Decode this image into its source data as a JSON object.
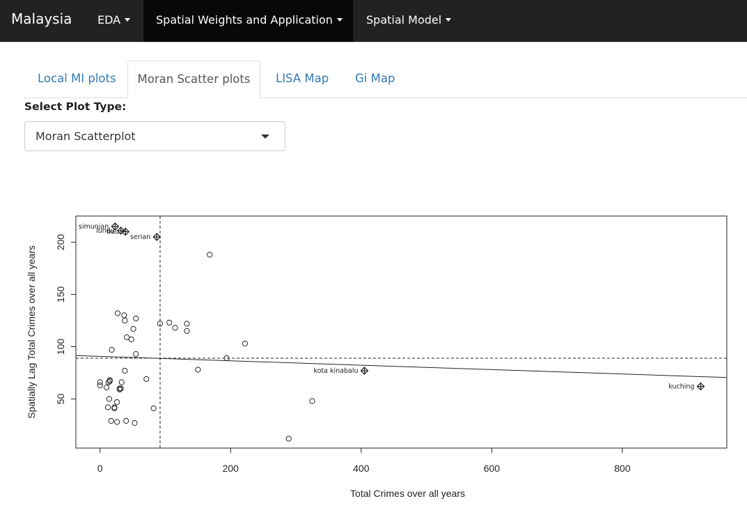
{
  "navbar": {
    "brand": "Malaysia",
    "items": [
      {
        "label": "EDA",
        "active": false
      },
      {
        "label": "Spatial Weights and Application",
        "active": true
      },
      {
        "label": "Spatial Model",
        "active": false
      }
    ]
  },
  "tabs": [
    {
      "label": "Local MI plots",
      "active": false
    },
    {
      "label": "Moran Scatter plots",
      "active": true
    },
    {
      "label": "LISA Map",
      "active": false
    },
    {
      "label": "Gi Map",
      "active": false
    }
  ],
  "select": {
    "label": "Select Plot Type:",
    "value": "Moran Scatterplot"
  },
  "chart_data": {
    "type": "scatter",
    "title": "",
    "xlabel": "Total Crimes over all years",
    "ylabel": "Spatially Lag Total Crimes over all years",
    "xlim": [
      -37,
      960
    ],
    "ylim": [
      3,
      225
    ],
    "xticks": [
      0,
      200,
      400,
      600,
      800
    ],
    "yticks": [
      50,
      100,
      150,
      200
    ],
    "mean_x": 92,
    "mean_y": 89,
    "regression_line": {
      "x": [
        -37,
        960
      ],
      "y": [
        91.5,
        70.5
      ]
    },
    "points": [
      {
        "x": 0,
        "y": 66
      },
      {
        "x": 0,
        "y": 63
      },
      {
        "x": 10,
        "y": 61
      },
      {
        "x": 13,
        "y": 66
      },
      {
        "x": 15,
        "y": 68
      },
      {
        "x": 15,
        "y": 67
      },
      {
        "x": 14,
        "y": 50
      },
      {
        "x": 12,
        "y": 42
      },
      {
        "x": 22,
        "y": 42
      },
      {
        "x": 22,
        "y": 41
      },
      {
        "x": 26,
        "y": 47
      },
      {
        "x": 17,
        "y": 29
      },
      {
        "x": 26,
        "y": 28
      },
      {
        "x": 30,
        "y": 60
      },
      {
        "x": 30,
        "y": 59
      },
      {
        "x": 32,
        "y": 60
      },
      {
        "x": 33,
        "y": 66
      },
      {
        "x": 40,
        "y": 29
      },
      {
        "x": 53,
        "y": 27
      },
      {
        "x": 38,
        "y": 77
      },
      {
        "x": 18,
        "y": 97
      },
      {
        "x": 27,
        "y": 132
      },
      {
        "x": 37,
        "y": 130
      },
      {
        "x": 38,
        "y": 125
      },
      {
        "x": 55,
        "y": 127
      },
      {
        "x": 51,
        "y": 117
      },
      {
        "x": 41,
        "y": 109
      },
      {
        "x": 48,
        "y": 107
      },
      {
        "x": 55,
        "y": 93
      },
      {
        "x": 71,
        "y": 69
      },
      {
        "x": 82,
        "y": 41
      },
      {
        "x": 92,
        "y": 122
      },
      {
        "x": 106,
        "y": 123
      },
      {
        "x": 115,
        "y": 118
      },
      {
        "x": 133,
        "y": 122
      },
      {
        "x": 133,
        "y": 115
      },
      {
        "x": 150,
        "y": 78
      },
      {
        "x": 168,
        "y": 188
      },
      {
        "x": 194,
        "y": 89
      },
      {
        "x": 222,
        "y": 103
      },
      {
        "x": 289,
        "y": 12
      },
      {
        "x": 325,
        "y": 48
      }
    ],
    "influential_points": [
      {
        "label": "simunjan",
        "x": 23,
        "y": 215
      },
      {
        "label": "lundu",
        "x": 32,
        "y": 211
      },
      {
        "label": "bau",
        "x": 39,
        "y": 210
      },
      {
        "label": "serian",
        "x": 87,
        "y": 205
      },
      {
        "label": "kota kinabalu",
        "x": 405,
        "y": 77
      },
      {
        "label": "kuching",
        "x": 920,
        "y": 62
      }
    ]
  }
}
